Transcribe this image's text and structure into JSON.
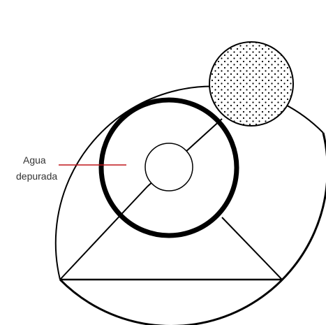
{
  "diagram": {
    "label": {
      "line1": "Agua",
      "line2": "depurada"
    },
    "colors": {
      "stroke": "#000000",
      "leader": "#c0161c",
      "text": "#333333",
      "background": "#ffffff"
    }
  }
}
